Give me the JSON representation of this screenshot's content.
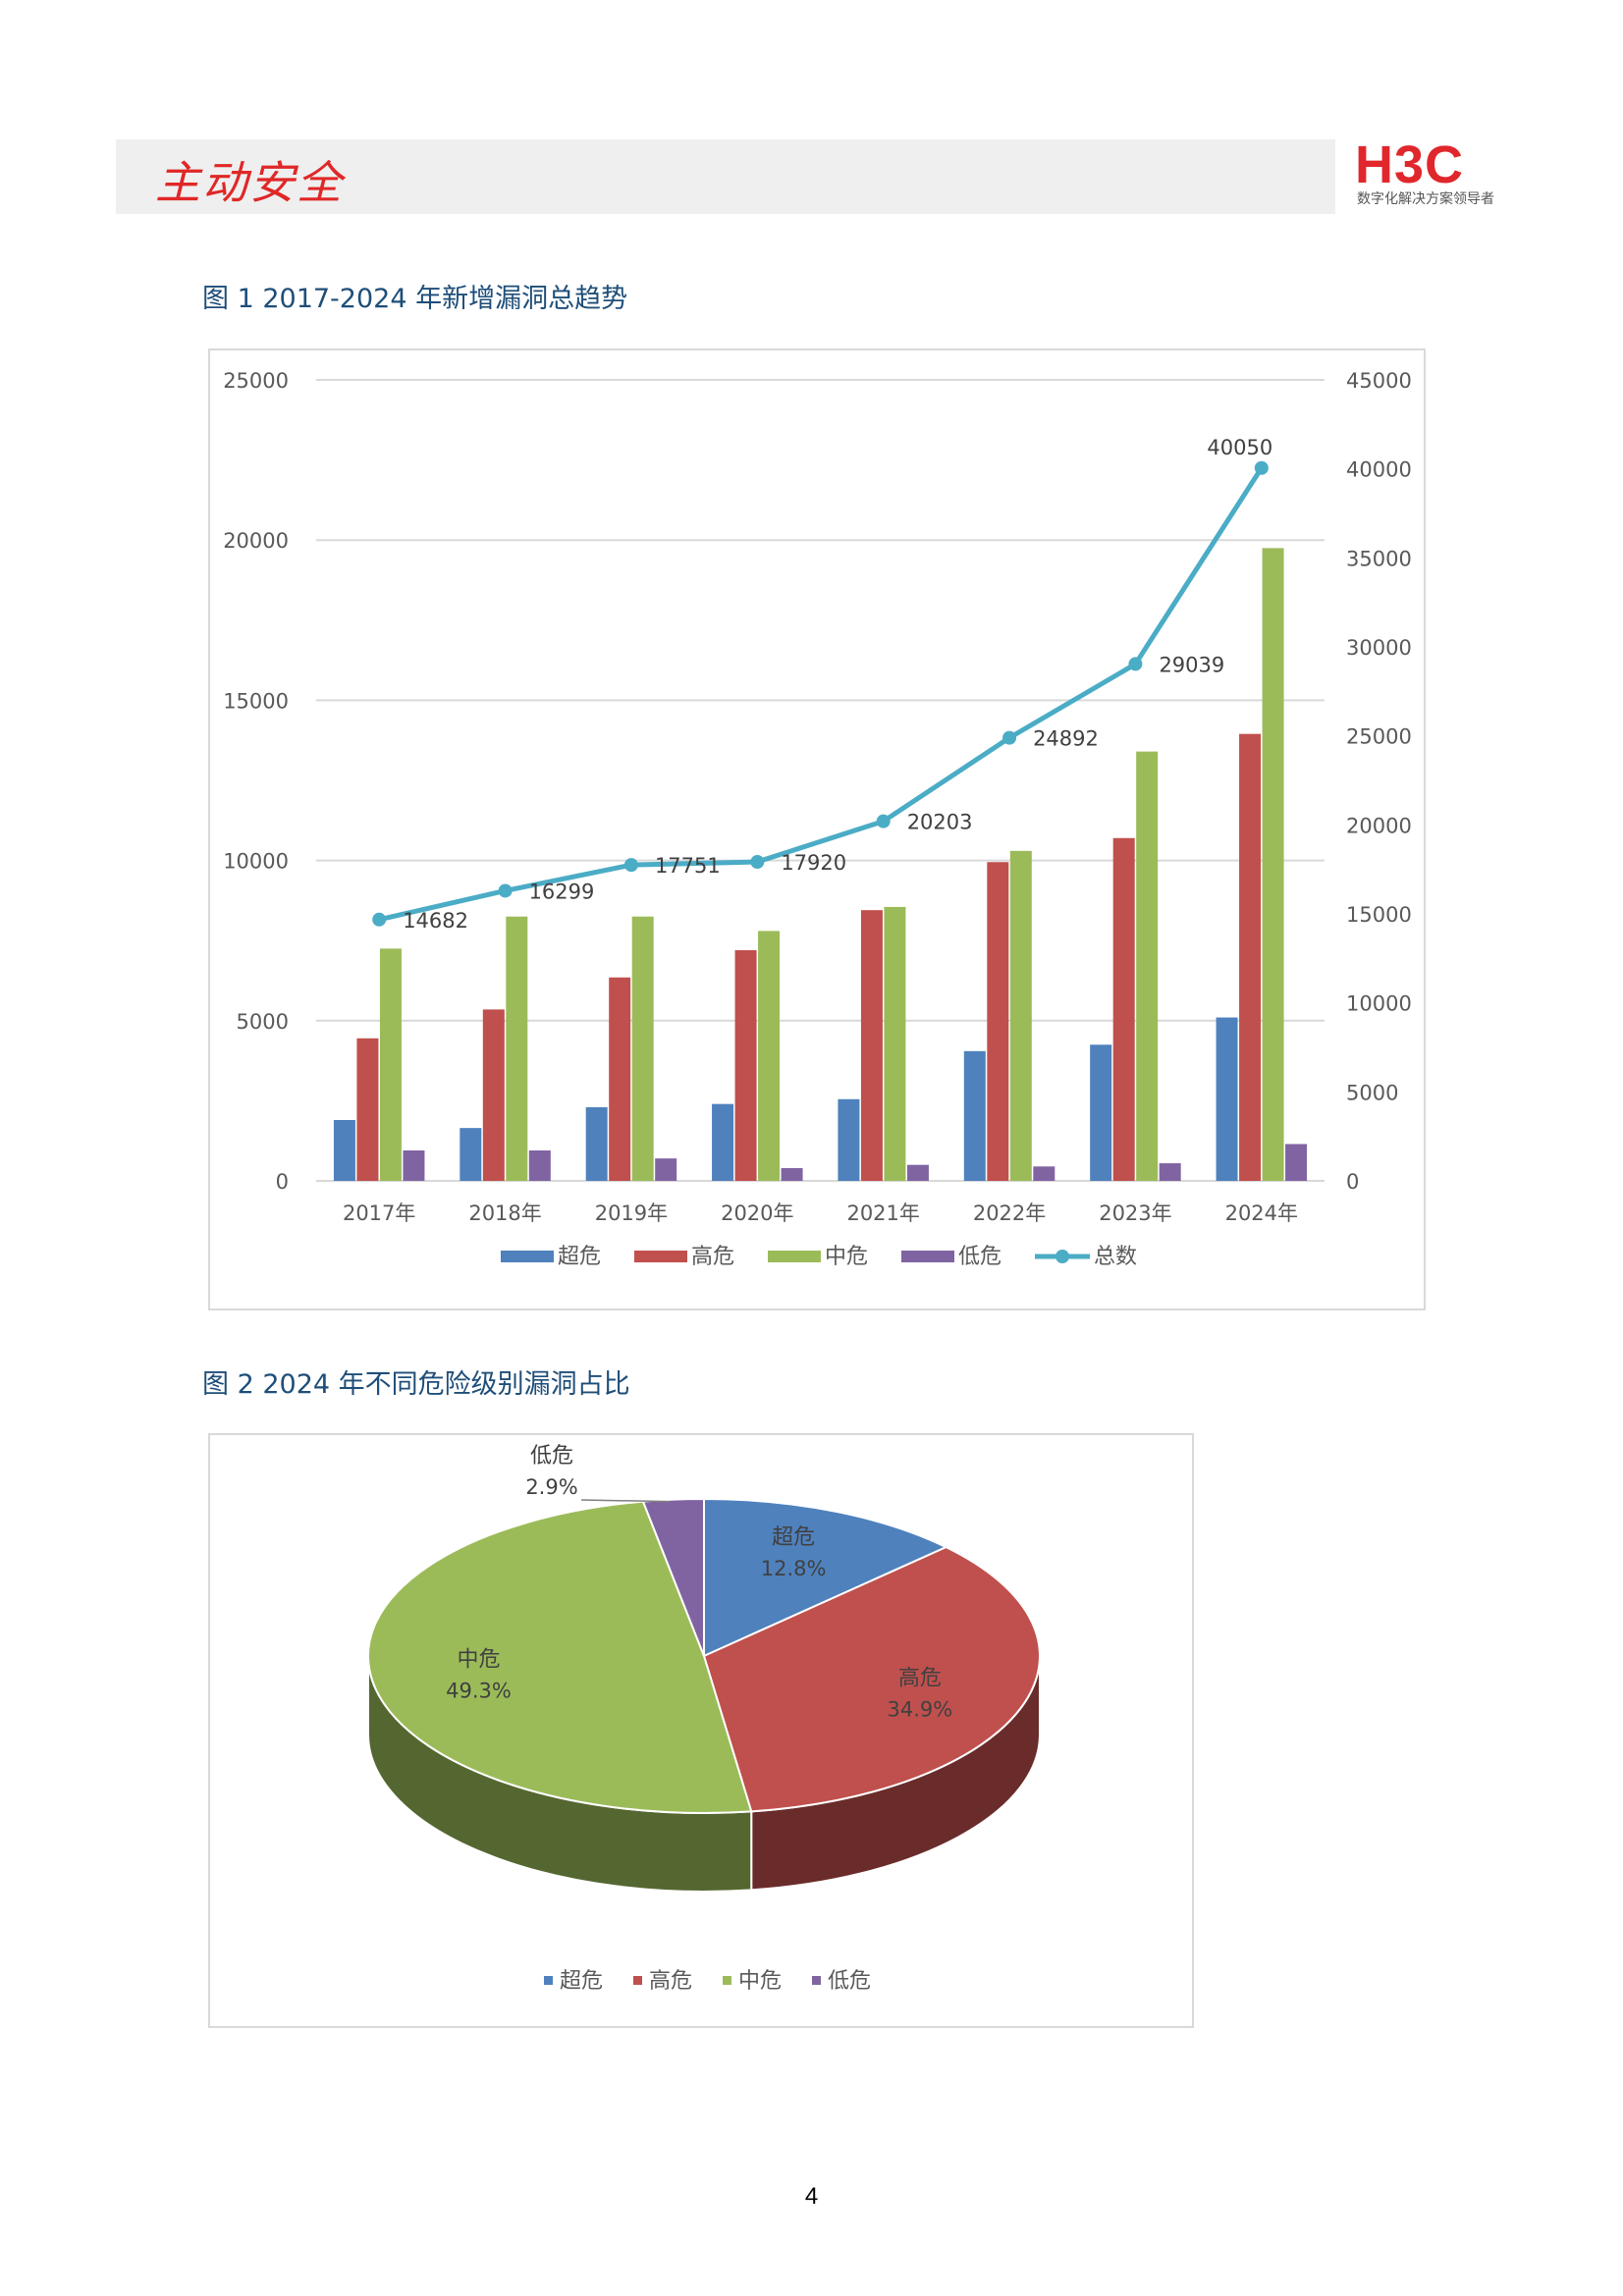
{
  "header": {
    "title": "主动安全",
    "logo_text": "H3C",
    "logo_subtitle": "数字化解决方案领导者"
  },
  "figure1": {
    "caption": "图 1 2017-2024 年新增漏洞总趋势"
  },
  "figure2": {
    "caption": "图 2 2024 年不同危险级别漏洞占比"
  },
  "page_number": "4",
  "colors": {
    "超危": "#4f81bd",
    "高危": "#c0504d",
    "中危": "#9bbb59",
    "低危": "#8064a2",
    "总数": "#4bacc6"
  },
  "chart_data": [
    {
      "type": "bar",
      "title": "",
      "categories": [
        "2017年",
        "2018年",
        "2019年",
        "2020年",
        "2021年",
        "2022年",
        "2023年",
        "2024年"
      ],
      "series": [
        {
          "name": "超危",
          "axis": "left",
          "values": [
            1900,
            1650,
            2300,
            2400,
            2550,
            4050,
            4250,
            5100
          ]
        },
        {
          "name": "高危",
          "axis": "left",
          "values": [
            4450,
            5350,
            6350,
            7200,
            8450,
            9950,
            10700,
            13950
          ]
        },
        {
          "name": "中危",
          "axis": "left",
          "values": [
            7250,
            8250,
            8250,
            7800,
            8550,
            10300,
            13400,
            19750
          ]
        },
        {
          "name": "低危",
          "axis": "left",
          "values": [
            950,
            950,
            700,
            400,
            500,
            450,
            550,
            1150
          ]
        },
        {
          "name": "总数",
          "axis": "right",
          "render": "line",
          "values": [
            14682,
            16299,
            17751,
            17920,
            20203,
            24892,
            29039,
            40050
          ]
        }
      ],
      "y_left": {
        "min": 0,
        "max": 25000,
        "ticks": [
          0,
          5000,
          10000,
          15000,
          20000,
          25000
        ]
      },
      "y_right": {
        "min": 0,
        "max": 45000,
        "ticks": [
          0,
          5000,
          10000,
          15000,
          20000,
          25000,
          30000,
          35000,
          40000,
          45000
        ]
      },
      "grid": true,
      "legend": "bottom"
    },
    {
      "type": "pie",
      "title": "",
      "slices": [
        {
          "name": "超危",
          "percent": "12.8%",
          "value": 12.8
        },
        {
          "name": "高危",
          "percent": "34.9%",
          "value": 34.9
        },
        {
          "name": "中危",
          "percent": "49.3%",
          "value": 49.3
        },
        {
          "name": "低危",
          "percent": "2.9%",
          "value": 2.9
        }
      ],
      "legend": "bottom"
    }
  ]
}
